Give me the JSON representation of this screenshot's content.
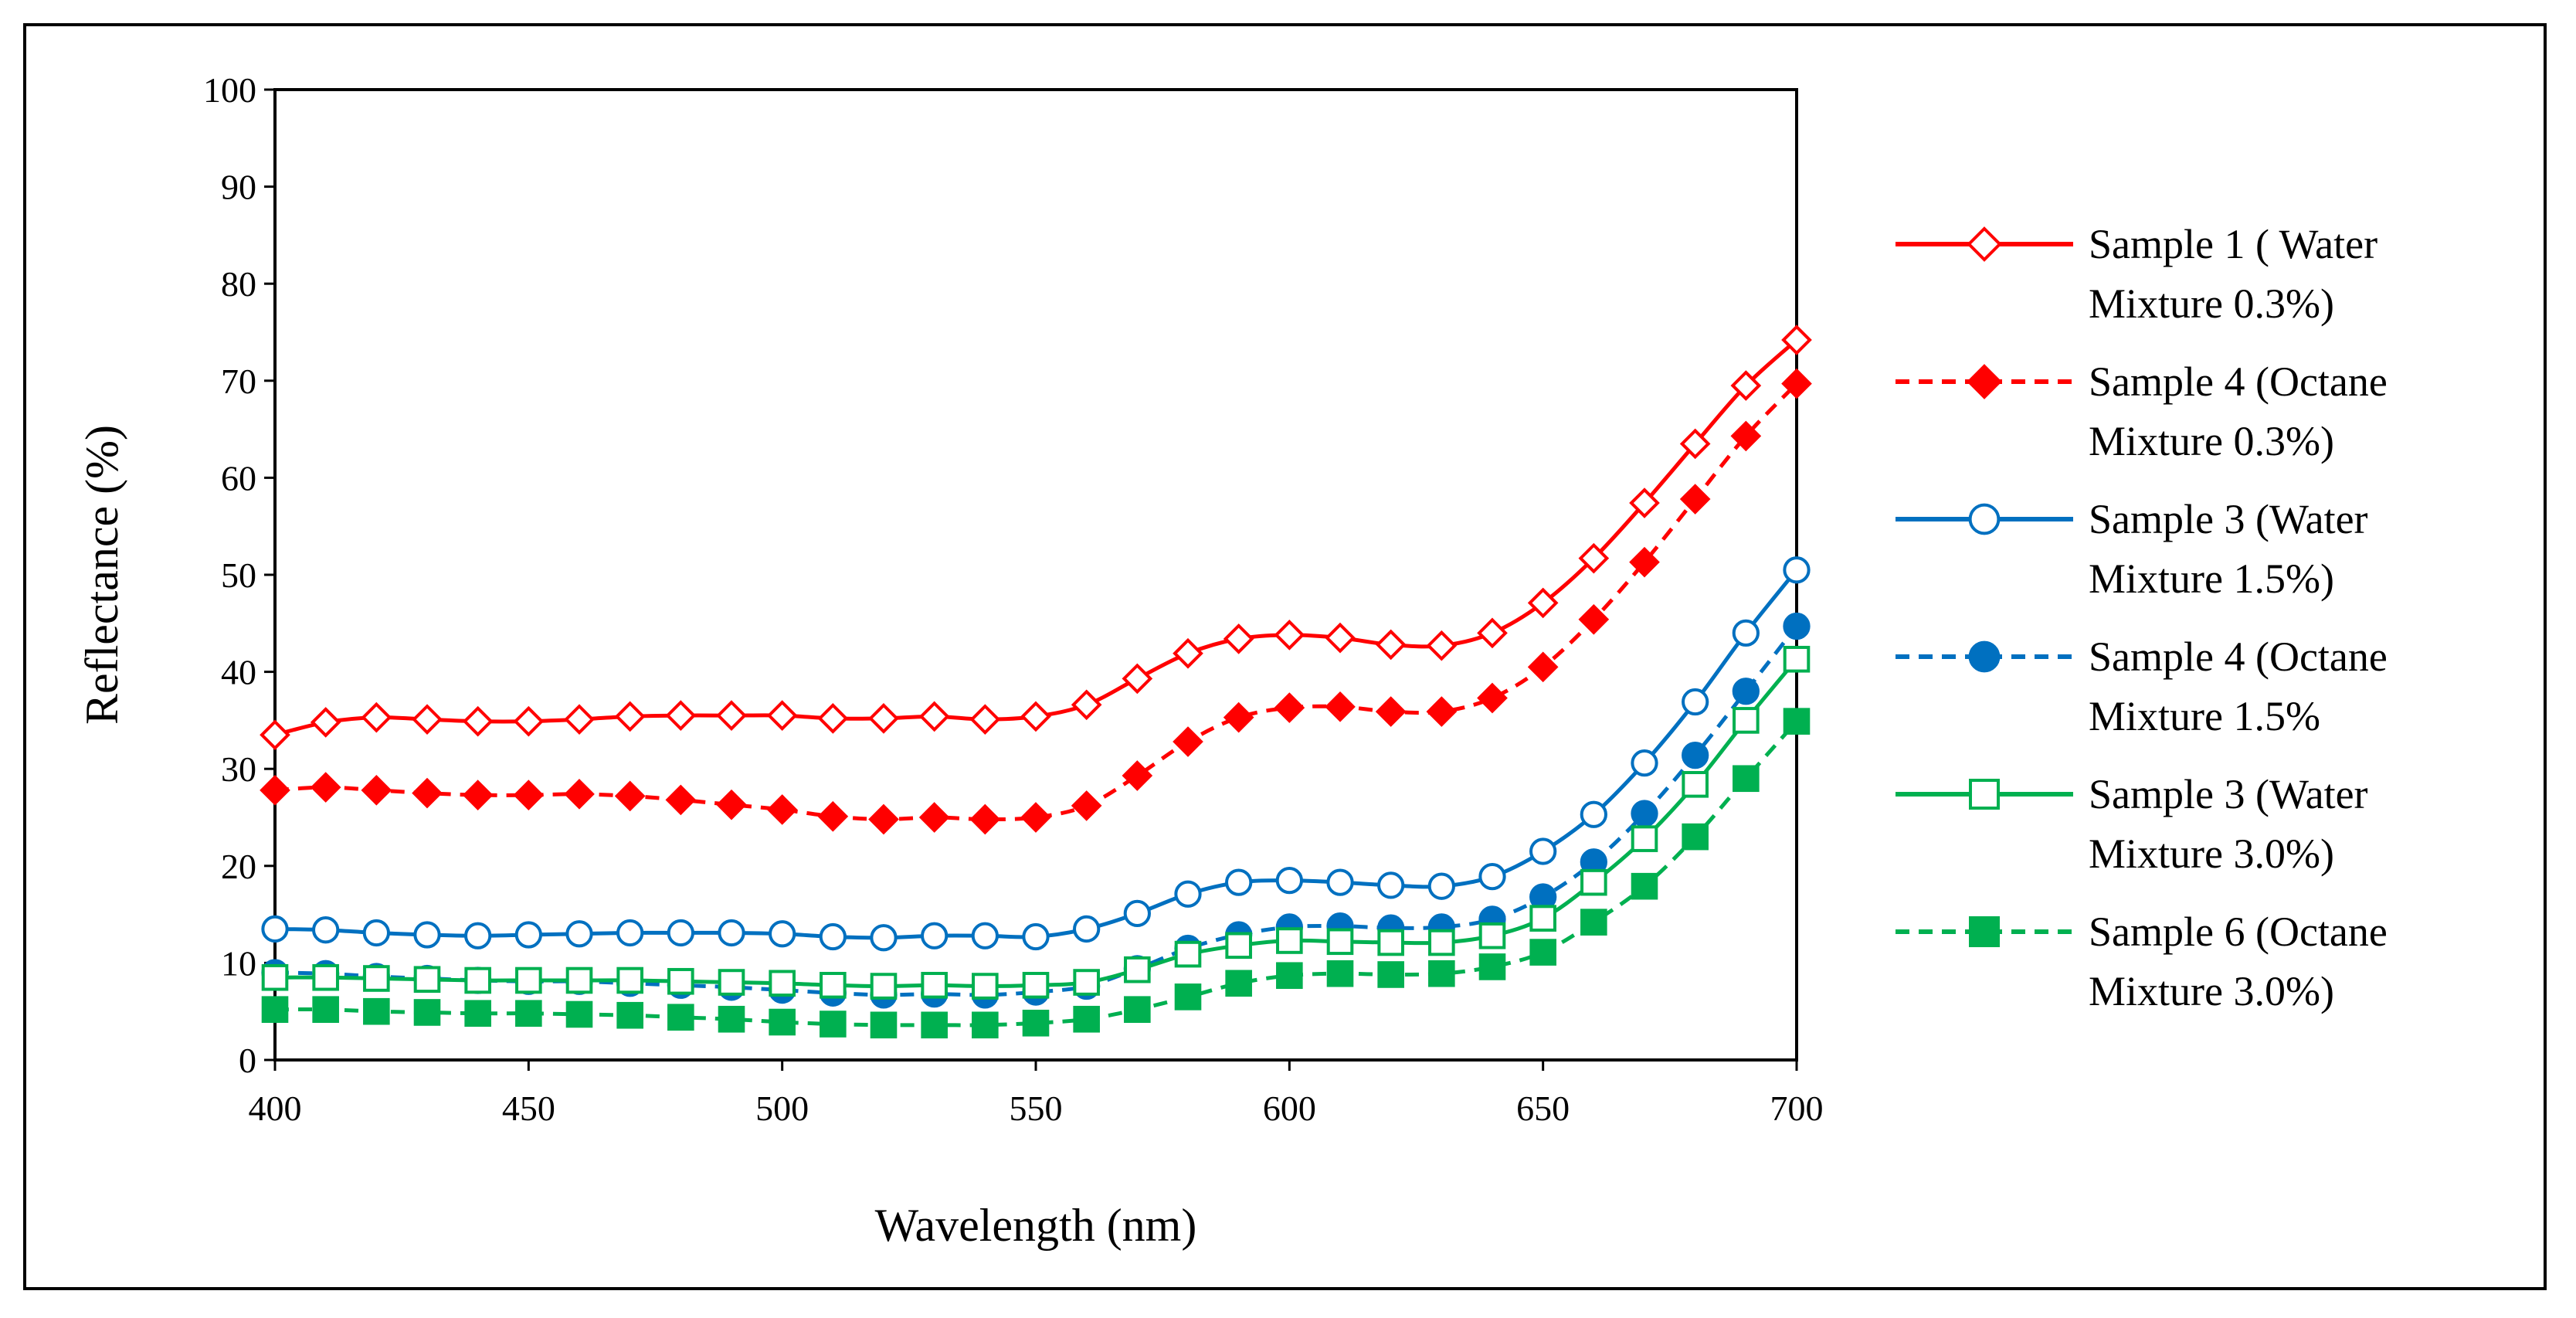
{
  "chart_data": {
    "type": "line",
    "title": "",
    "xlabel": "Wavelength (nm)",
    "ylabel": "Reflectance (%)",
    "xlim": [
      400,
      700
    ],
    "ylim": [
      0,
      100
    ],
    "x_ticks": [
      400,
      450,
      500,
      550,
      600,
      650,
      700
    ],
    "y_ticks": [
      0,
      10,
      20,
      30,
      40,
      50,
      60,
      70,
      80,
      90,
      100
    ],
    "grid": false,
    "legend_position": "right",
    "x": [
      400,
      410,
      420,
      430,
      440,
      450,
      460,
      470,
      480,
      490,
      500,
      510,
      520,
      530,
      540,
      550,
      560,
      570,
      580,
      590,
      600,
      610,
      620,
      630,
      640,
      650,
      660,
      670,
      680,
      690,
      700
    ],
    "series": [
      {
        "name": "Sample 1 ( Water Mixture 0.3%)",
        "legend_lines": [
          "Sample 1 ( Water",
          "Mixture 0.3%)"
        ],
        "color": "#ff0000",
        "line_style": "solid",
        "marker": "diamond-open",
        "values": [
          33.5,
          34.8,
          35.3,
          35.1,
          34.9,
          34.9,
          35.1,
          35.4,
          35.5,
          35.5,
          35.5,
          35.2,
          35.2,
          35.4,
          35.1,
          35.4,
          36.6,
          39.3,
          41.9,
          43.4,
          43.8,
          43.5,
          42.8,
          42.7,
          44.0,
          47.1,
          51.7,
          57.4,
          63.5,
          69.5,
          74.2
        ]
      },
      {
        "name": "Sample 4 (Octane Mixture 0.3%)",
        "legend_lines": [
          "Sample 4 (Octane",
          "Mixture 0.3%)"
        ],
        "color": "#ff0000",
        "line_style": "dashed",
        "marker": "diamond-filled",
        "values": [
          27.8,
          28.1,
          27.8,
          27.5,
          27.3,
          27.3,
          27.4,
          27.2,
          26.8,
          26.3,
          25.8,
          25.1,
          24.8,
          25.0,
          24.8,
          25.0,
          26.2,
          29.3,
          32.8,
          35.3,
          36.3,
          36.4,
          35.9,
          35.9,
          37.3,
          40.5,
          45.4,
          51.3,
          57.8,
          64.3,
          69.7
        ]
      },
      {
        "name": "Sample 3 (Water Mixture 1.5%)",
        "legend_lines": [
          "Sample 3 (Water",
          "Mixture 1.5%)"
        ],
        "color": "#0070c0",
        "line_style": "solid",
        "marker": "circle-open",
        "values": [
          13.5,
          13.4,
          13.1,
          12.9,
          12.8,
          12.9,
          13.0,
          13.1,
          13.1,
          13.1,
          13.0,
          12.7,
          12.6,
          12.8,
          12.8,
          12.7,
          13.5,
          15.1,
          17.1,
          18.3,
          18.5,
          18.3,
          18.0,
          17.9,
          18.9,
          21.5,
          25.3,
          30.6,
          36.9,
          44.0,
          50.5
        ]
      },
      {
        "name": "Sample 4 (Octane Mixture 1.5%",
        "legend_lines": [
          "Sample 4 (Octane",
          "Mixture 1.5%"
        ],
        "color": "#0070c0",
        "line_style": "dashed",
        "marker": "circle-filled",
        "values": [
          9.0,
          8.9,
          8.6,
          8.4,
          8.2,
          8.1,
          8.1,
          7.9,
          7.7,
          7.5,
          7.2,
          6.9,
          6.7,
          6.8,
          6.7,
          7.0,
          7.6,
          9.4,
          11.5,
          12.9,
          13.7,
          13.8,
          13.6,
          13.7,
          14.5,
          16.8,
          20.4,
          25.4,
          31.4,
          38.0,
          44.7
        ]
      },
      {
        "name": "Sample 3 (Water Mixture 3.0%)",
        "legend_lines": [
          "Sample 3 (Water",
          "Mixture 3.0%)"
        ],
        "color": "#00b050",
        "line_style": "solid",
        "marker": "square-open",
        "values": [
          8.5,
          8.5,
          8.4,
          8.3,
          8.2,
          8.2,
          8.2,
          8.2,
          8.1,
          8.0,
          7.9,
          7.7,
          7.6,
          7.7,
          7.6,
          7.7,
          8.0,
          9.3,
          10.9,
          11.8,
          12.3,
          12.2,
          12.1,
          12.1,
          12.8,
          14.6,
          18.3,
          22.8,
          28.4,
          35.0,
          41.3
        ]
      },
      {
        "name": "Sample 6 (Octane Mixture 3.0%)",
        "legend_lines": [
          "Sample 6 (Octane",
          "Mixture 3.0%)"
        ],
        "color": "#00b050",
        "line_style": "dashed",
        "marker": "square-filled",
        "values": [
          5.2,
          5.2,
          5.0,
          4.9,
          4.8,
          4.8,
          4.7,
          4.6,
          4.4,
          4.2,
          3.9,
          3.7,
          3.6,
          3.6,
          3.6,
          3.8,
          4.2,
          5.2,
          6.5,
          7.9,
          8.7,
          8.9,
          8.8,
          8.9,
          9.6,
          11.1,
          14.2,
          17.9,
          23.0,
          29.0,
          34.9
        ]
      }
    ]
  }
}
